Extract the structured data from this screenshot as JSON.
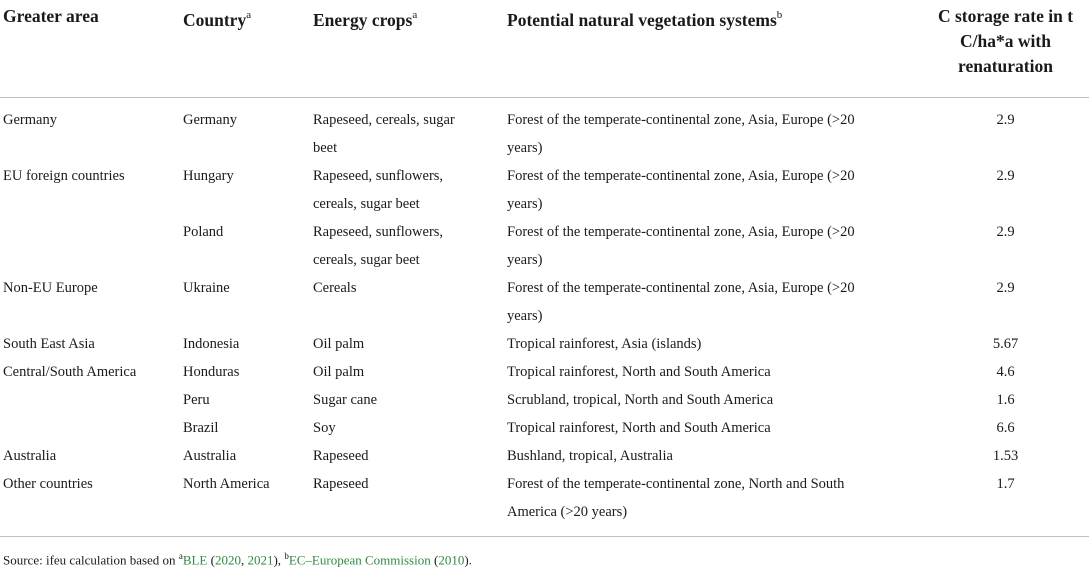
{
  "headers": {
    "greater_area": "Greater area",
    "country": "Country",
    "country_sup": "a",
    "energy_crops": "Energy crops",
    "energy_crops_sup": "a",
    "vegetation": "Potential natural vegetation systems",
    "vegetation_sup": "b",
    "c_storage_line1": "C storage rate in t",
    "c_storage_line2": "C/ha*a with",
    "c_storage_line3": "renaturation"
  },
  "rows": [
    {
      "area": "Germany",
      "country": "Germany",
      "crops_l1": "Rapeseed, cereals, sugar",
      "crops_l2": "beet",
      "veg_l1": "Forest of the temperate-continental zone, Asia, Europe (>20",
      "veg_l2": "years)",
      "rate": "2.9"
    },
    {
      "area": "EU foreign countries",
      "country": "Hungary",
      "crops_l1": "Rapeseed, sunflowers,",
      "crops_l2": "cereals, sugar beet",
      "veg_l1": "Forest of the temperate-continental zone, Asia, Europe (>20",
      "veg_l2": "years)",
      "rate": "2.9"
    },
    {
      "area": "",
      "country": "Poland",
      "crops_l1": "Rapeseed, sunflowers,",
      "crops_l2": "cereals, sugar beet",
      "veg_l1": "Forest of the temperate-continental zone, Asia, Europe (>20",
      "veg_l2": "years)",
      "rate": "2.9"
    },
    {
      "area": "Non-EU Europe",
      "country": "Ukraine",
      "crops_l1": "Cereals",
      "crops_l2": "",
      "veg_l1": "Forest of the temperate-continental zone, Asia, Europe (>20",
      "veg_l2": "years)",
      "rate": "2.9"
    },
    {
      "area": "South East Asia",
      "country": "Indonesia",
      "crops_l1": "Oil palm",
      "crops_l2": "",
      "veg_l1": "Tropical rainforest, Asia (islands)",
      "veg_l2": "",
      "rate": "5.67"
    },
    {
      "area": "Central/South America",
      "country": "Honduras",
      "crops_l1": "Oil palm",
      "crops_l2": "",
      "veg_l1": "Tropical rainforest, North and South America",
      "veg_l2": "",
      "rate": "4.6"
    },
    {
      "area": "",
      "country": "Peru",
      "crops_l1": "Sugar cane",
      "crops_l2": "",
      "veg_l1": "Scrubland, tropical, North and South America",
      "veg_l2": "",
      "rate": "1.6"
    },
    {
      "area": "",
      "country": "Brazil",
      "crops_l1": "Soy",
      "crops_l2": "",
      "veg_l1": "Tropical rainforest, North and South America",
      "veg_l2": "",
      "rate": "6.6"
    },
    {
      "area": "Australia",
      "country": "Australia",
      "crops_l1": "Rapeseed",
      "crops_l2": "",
      "veg_l1": "Bushland, tropical, Australia",
      "veg_l2": "",
      "rate": "1.53"
    },
    {
      "area": "Other countries",
      "country": "North America",
      "crops_l1": "Rapeseed",
      "crops_l2": "",
      "veg_l1": "Forest of the temperate-continental zone, North and South",
      "veg_l2": "America (>20 years)",
      "rate": "1.7"
    }
  ],
  "source": {
    "prefix": "Source: ifeu calculation based on ",
    "sup_a": "a",
    "ble": "BLE",
    "open1": " (",
    "y2020": "2020",
    "comma": ", ",
    "y2021": "2021",
    "close1": "), ",
    "sup_b": "b",
    "ec": "EC–European Commission",
    "open2": " (",
    "y2010": "2010",
    "close2": ")."
  }
}
